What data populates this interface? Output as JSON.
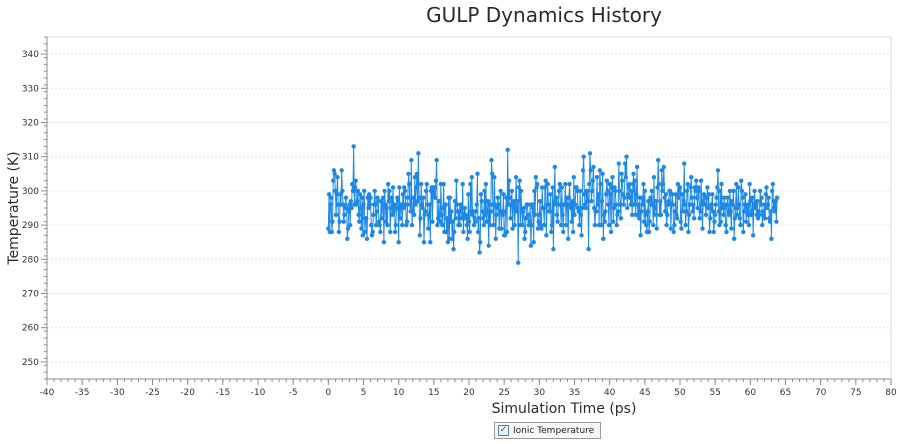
{
  "chart_data": {
    "type": "line",
    "title": "GULP Dynamics History",
    "xlabel": "Simulation Time (ps)",
    "ylabel": "Temperature (K)",
    "xlim": [
      -40,
      80
    ],
    "ylim": [
      245,
      345
    ],
    "x_ticks": [
      -40,
      -35,
      -30,
      -25,
      -20,
      -15,
      -10,
      -5,
      0,
      5,
      10,
      15,
      20,
      25,
      30,
      35,
      40,
      45,
      50,
      55,
      60,
      65,
      70,
      75,
      80
    ],
    "y_ticks": [
      250,
      260,
      270,
      280,
      290,
      300,
      310,
      320,
      330,
      340
    ],
    "grid": true,
    "legend_position": "bottom",
    "series": [
      {
        "name": "Ionic Temperature",
        "color": "#1e88e5",
        "x_start": 0,
        "x_step": 0.1,
        "values": [
          289,
          299,
          288,
          296,
          298,
          288,
          291,
          303,
          306,
          305,
          300,
          293,
          299,
          304,
          296,
          288,
          291,
          299,
          296,
          306,
          300,
          296,
          291,
          293,
          295,
          298,
          295,
          286,
          289,
          294,
          296,
          290,
          297,
          295,
          302,
          300,
          313,
          296,
          301,
          303,
          296,
          297,
          300,
          293,
          291,
          299,
          295,
          289,
          298,
          287,
          296,
          300,
          288,
          292,
          292,
          286,
          298,
          295,
          299,
          296,
          298,
          290,
          287,
          288,
          293,
          296,
          300,
          296,
          290,
          294,
          298,
          297,
          291,
          290,
          288,
          297,
          292,
          296,
          298,
          285,
          300,
          296,
          291,
          295,
          290,
          302,
          297,
          300,
          288,
          295,
          298,
          293,
          301,
          294,
          296,
          288,
          290,
          295,
          298,
          297,
          285,
          301,
          292,
          296,
          296,
          290,
          299,
          295,
          301,
          300,
          296,
          290,
          291,
          298,
          305,
          302,
          296,
          294,
          309,
          290,
          294,
          298,
          293,
          304,
          296,
          301,
          305,
          297,
          311,
          298,
          287,
          292,
          302,
          296,
          295,
          298,
          285,
          293,
          294,
          300,
          302,
          296,
          289,
          293,
          296,
          285,
          300,
          301,
          291,
          301,
          299,
          301,
          298,
          303,
          309,
          290,
          292,
          297,
          293,
          291,
          302,
          293,
          290,
          295,
          302,
          288,
          296,
          296,
          288,
          292,
          285,
          298,
          286,
          298,
          291,
          294,
          286,
          291,
          283,
          288,
          297,
          292,
          303,
          296,
          294,
          290,
          294,
          290,
          296,
          295,
          292,
          302,
          288,
          293,
          295,
          293,
          292,
          290,
          286,
          299,
          291,
          288,
          302,
          294,
          304,
          293,
          294,
          290,
          292,
          291,
          294,
          296,
          305,
          288,
          292,
          282,
          285,
          299,
          297,
          294,
          292,
          290,
          300,
          293,
          302,
          291,
          294,
          297,
          284,
          296,
          290,
          294,
          309,
          305,
          296,
          290,
          304,
          296,
          286,
          293,
          295,
          298,
          296,
          289,
          294,
          300,
          289,
          294,
          293,
          299,
          287,
          287,
          294,
          298,
          288,
          312,
          296,
          303,
          298,
          292,
          296,
          300,
          289,
          296,
          297,
          290,
          295,
          304,
          294,
          297,
          279,
          301,
          303,
          290,
          300,
          294,
          290,
          294,
          295,
          286,
          288,
          292,
          296,
          296,
          293,
          290,
          291,
          296,
          284,
          290,
          296,
          295,
          285,
          300,
          293,
          304,
          301,
          302,
          289,
          291,
          293,
          297,
          290,
          289,
          301,
          295,
          295,
          290,
          301,
          303,
          287,
          296,
          302,
          296,
          294,
          294,
          299,
          288,
          290,
          301,
          283,
          296,
          307,
          297,
          298,
          293,
          291,
          296,
          300,
          302,
          296,
          290,
          301,
          293,
          288,
          296,
          296,
          302,
          290,
          298,
          296,
          286,
          298,
          302,
          296,
          295,
          291,
          297,
          288,
          304,
          293,
          296,
          301,
          301,
          300,
          295,
          294,
          290,
          300,
          293,
          287,
          295,
          306,
          310,
          299,
          296,
          295,
          300,
          297,
          300,
          283,
          302,
          311,
          306,
          297,
          300,
          303,
          307,
          295,
          290,
          294,
          294,
          304,
          296,
          299,
          290,
          306,
          302,
          290,
          297,
          305,
          286,
          293,
          291,
          294,
          299,
          303,
          300,
          296,
          290,
          302,
          299,
          288,
          301,
          304,
          291,
          295,
          301,
          300,
          296,
          290,
          293,
          294,
          308,
          300,
          296,
          292,
          305,
          303,
          299,
          296,
          298,
          308,
          304,
          310,
          295,
          299,
          301,
          302,
          298,
          296,
          300,
          293,
          302,
          305,
          296,
          303,
          293,
          299,
          307,
          293,
          296,
          292,
          298,
          287,
          294,
          298,
          296,
          302,
          291,
          300,
          293,
          290,
          288,
          294,
          297,
          288,
          291,
          298,
          296,
          300,
          296,
          290,
          304,
          293,
          295,
          297,
          289,
          301,
          309,
          302,
          293,
          297,
          293,
          306,
          300,
          302,
          307,
          298,
          294,
          299,
          290,
          293,
          296,
          297,
          300,
          300,
          289,
          296,
          299,
          296,
          288,
          290,
          294,
          299,
          293,
          292,
          302,
          298,
          300,
          301,
          291,
          289,
          299,
          294,
          297,
          308,
          296,
          290,
          294,
          300,
          302,
          288,
          293,
          296,
          301,
          304,
          298,
          294,
          296,
          292,
          301,
          300,
          303,
          298,
          295,
          301,
          300,
          292,
          294,
          303,
          296,
          289,
          297,
          299,
          298,
          296,
          293,
          298,
          301,
          295,
          299,
          288,
          292,
          295,
          296,
          299,
          294,
          288,
          291,
          293,
          296,
          298,
          301,
          306,
          294,
          290,
          300,
          291,
          302,
          295,
          296,
          293,
          298,
          295,
          290,
          288,
          296,
          298,
          294,
          293,
          300,
          294,
          289,
          297,
          296,
          300,
          286,
          292,
          295,
          302,
          293,
          295,
          301,
          296,
          292,
          290,
          303,
          300,
          298,
          288,
          294,
          296,
          299,
          291,
          295,
          293,
          296,
          290,
          302,
          297,
          293,
          294,
          298,
          287,
          296,
          300,
          295,
          296,
          293,
          297,
          292,
          294,
          293,
          300,
          296,
          298,
          290,
          294,
          293,
          296,
          292,
          299,
          301,
          295,
          296,
          298,
          292,
          291,
          294,
          286,
          300,
          302,
          295,
          297,
          294,
          297,
          291,
          298
        ]
      }
    ]
  }
}
